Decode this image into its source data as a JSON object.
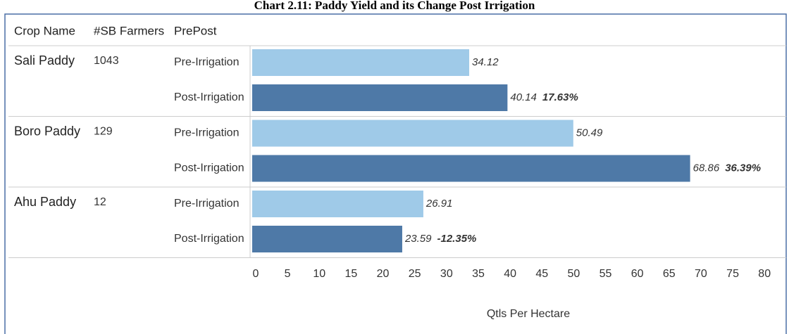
{
  "chart_data": {
    "type": "bar",
    "orientation": "horizontal",
    "title": "Chart 2.11: Paddy Yield and its Change Post Irrigation",
    "column_headers": [
      "Crop Name",
      "#SB Farmers",
      "PrePost"
    ],
    "categories": [
      "Sali Paddy",
      "Boro Paddy",
      "Ahu Paddy"
    ],
    "farmers": [
      1043,
      129,
      12
    ],
    "series": [
      {
        "name": "Pre-Irrigation",
        "color": "#9fcae8",
        "values": [
          34.12,
          50.49,
          26.91
        ]
      },
      {
        "name": "Post-Irrigation",
        "color": "#4e79a7",
        "values": [
          40.14,
          68.86,
          23.59
        ]
      }
    ],
    "change": {
      "values": [
        17.63,
        36.39,
        -12.35
      ],
      "value_labels": [
        "17.63%",
        "36.39%",
        "-12.35%"
      ]
    },
    "xlabel": "Qtls Per Hectare",
    "xlim": [
      0,
      83.3
    ],
    "xticks": [
      0,
      5,
      10,
      15,
      20,
      25,
      30,
      35,
      40,
      45,
      50,
      55,
      60,
      65,
      70,
      75,
      80
    ]
  }
}
